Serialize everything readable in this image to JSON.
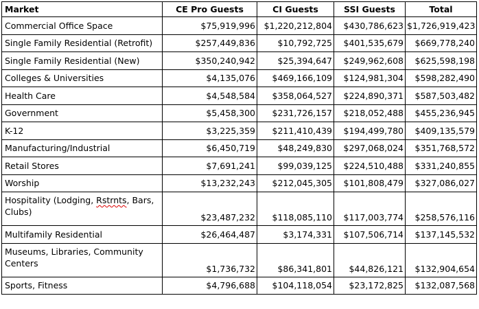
{
  "table": {
    "headers": [
      "Market",
      "CE Pro Guests",
      "CI Guests",
      "SSI Guests",
      "Total"
    ],
    "rows": [
      {
        "market": "Commercial Office Space",
        "ce": "$75,919,996",
        "ci": "$1,220,212,804",
        "ssi": "$430,786,623",
        "total": "$1,726,919,423"
      },
      {
        "market": "Single Family Residential (Retrofit)",
        "ce": "$257,449,836",
        "ci": "$10,792,725",
        "ssi": "$401,535,679",
        "total": "$669,778,240"
      },
      {
        "market": "Single Family Residential (New)",
        "ce": "$350,240,942",
        "ci": "$25,394,647",
        "ssi": "$249,962,608",
        "total": "$625,598,198"
      },
      {
        "market": "Colleges & Universities",
        "ce": "$4,135,076",
        "ci": "$469,166,109",
        "ssi": "$124,981,304",
        "total": "$598,282,490"
      },
      {
        "market": "Health Care",
        "ce": "$4,548,584",
        "ci": "$358,064,527",
        "ssi": "$224,890,371",
        "total": "$587,503,482"
      },
      {
        "market": "Government",
        "ce": "$5,458,300",
        "ci": "$231,726,157",
        "ssi": "$218,052,488",
        "total": "$455,236,945"
      },
      {
        "market": "K-12",
        "ce": "$3,225,359",
        "ci": "$211,410,439",
        "ssi": "$194,499,780",
        "total": "$409,135,579"
      },
      {
        "market": "Manufacturing/Industrial",
        "ce": "$6,450,719",
        "ci": "$48,249,830",
        "ssi": "$297,068,024",
        "total": "$351,768,572"
      },
      {
        "market": "Retail Stores",
        "ce": "$7,691,241",
        "ci": "$99,039,125",
        "ssi": "$224,510,488",
        "total": "$331,240,855"
      },
      {
        "market": "Worship",
        "ce": "$13,232,243",
        "ci": "$212,045,305",
        "ssi": "$101,808,479",
        "total": "$327,086,027"
      },
      {
        "market_parts": [
          "Hospitality (Lodging, ",
          "Rstrnts",
          ", Bars, Clubs)"
        ],
        "ce": "$23,487,232",
        "ci": "$118,085,110",
        "ssi": "$117,003,774",
        "total": "$258,576,116"
      },
      {
        "market": "Multifamily Residential",
        "ce": "$26,464,487",
        "ci": "$3,174,331",
        "ssi": "$107,506,714",
        "total": "$137,145,532"
      },
      {
        "market": "Museums, Libraries, Community Centers",
        "ce": "$1,736,732",
        "ci": "$86,341,801",
        "ssi": "$44,826,121",
        "total": "$132,904,654"
      },
      {
        "market": "Sports, Fitness",
        "ce": "$4,796,688",
        "ci": "$104,118,054",
        "ssi": "$23,172,825",
        "total": "$132,087,568"
      }
    ]
  }
}
